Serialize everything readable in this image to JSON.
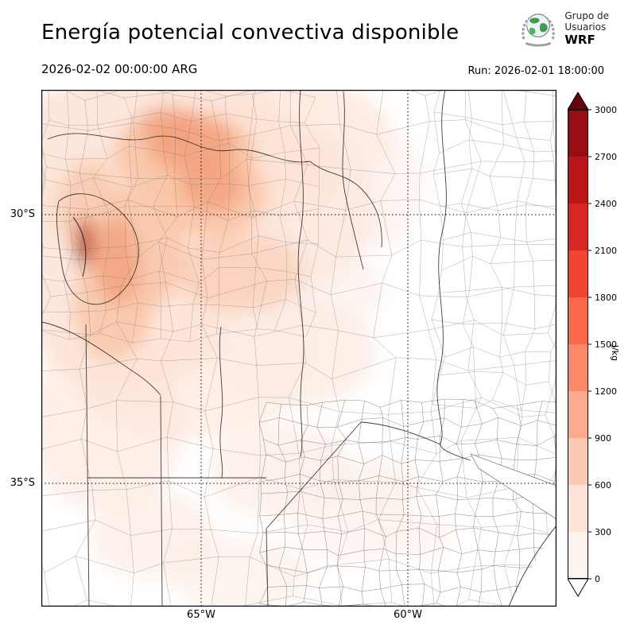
{
  "header": {
    "title": "Energía potencial convectiva disponible",
    "valid_time": "2026-02-02 00:00:00 ARG",
    "run_label": "Run: 2026-02-01 18:00:00",
    "logo": {
      "line1": "Grupo de",
      "line2": "Usuarios",
      "line3": "WRF"
    }
  },
  "map": {
    "lat_ticks": [
      "30°S",
      "35°S"
    ],
    "lon_ticks": [
      "65°W",
      "60°W"
    ]
  },
  "colorbar": {
    "units": "J/kg",
    "tick_values": [
      "3000",
      "2700",
      "2400",
      "2100",
      "1800",
      "1500",
      "1200",
      "900",
      "600",
      "300",
      "0"
    ],
    "segment_colors_top_to_bottom": [
      "#980c13",
      "#bb151a",
      "#d92523",
      "#f14432",
      "#fb694a",
      "#fc8a6a",
      "#fcab8f",
      "#fdc9b3",
      "#fee3d7",
      "#fff5f0"
    ],
    "over_color": "#67000d",
    "under_color": "#ffffff"
  }
}
